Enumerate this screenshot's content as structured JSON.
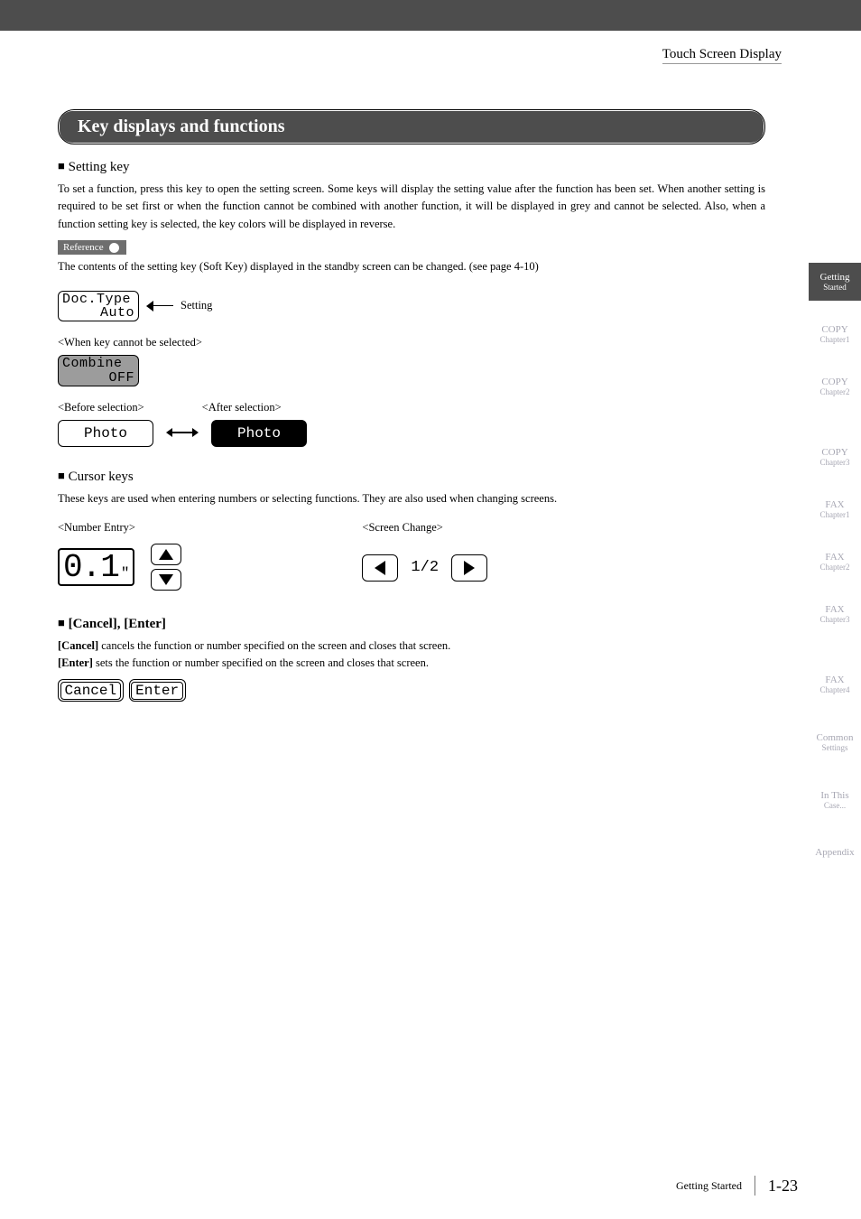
{
  "header": {
    "running_head": "Touch Screen Display"
  },
  "title": "Key displays and functions",
  "setting_key": {
    "heading": "Setting key",
    "body": "To set a function, press this key to open the setting screen. Some keys will display the setting value after the function has been set. When another setting is required to be set first or when the function cannot be combined with another function, it will be displayed in grey and cannot be selected. Also, when a function setting key is selected, the key colors will be displayed in reverse.",
    "reference_label": "Reference",
    "reference_text": "The contents of the setting key (Soft Key) displayed in the standby screen can be changed. (see page 4-10)",
    "doctype_key": {
      "line1": "Doc.Type",
      "line2": "Auto"
    },
    "arrow_caption": "Setting",
    "cannot_select_label": "<When key cannot be selected>",
    "combine_key": {
      "line1": "Combine",
      "line2": "OFF"
    },
    "before_label": "<Before selection>",
    "after_label": "<After selection>",
    "photo_label": "Photo"
  },
  "cursor_keys": {
    "heading": "Cursor keys",
    "body": "These keys are used when entering numbers or selecting functions. They are also used when changing screens.",
    "number_entry_label": "<Number Entry>",
    "number_value": "0.1",
    "number_unit": "\"",
    "screen_change_label": "<Screen Change>",
    "page_indicator": "1/2"
  },
  "cancel_enter": {
    "heading": "[Cancel], [Enter]",
    "cancel_line_prefix": "[Cancel]",
    "cancel_line_rest": " cancels the function or number specified on the screen and closes that screen.",
    "enter_line_prefix": "[Enter]",
    "enter_line_rest": " sets the function or number specified on the screen and closes that screen.",
    "cancel_btn": "Cancel",
    "enter_btn": "Enter"
  },
  "sidebar": {
    "tabs": [
      {
        "t1": "Getting",
        "t2": "Started",
        "active": true
      },
      {
        "t1": "COPY",
        "t2": "Chapter1"
      },
      {
        "t1": "COPY",
        "t2": "Chapter2"
      },
      {
        "t1": "COPY",
        "t2": "Chapter3"
      },
      {
        "t1": "FAX",
        "t2": "Chapter1"
      },
      {
        "t1": "FAX",
        "t2": "Chapter2"
      },
      {
        "t1": "FAX",
        "t2": "Chapter3"
      },
      {
        "t1": "FAX",
        "t2": "Chapter4"
      },
      {
        "t1": "Common",
        "t2": "Settings"
      },
      {
        "t1": "In This",
        "t2": "Case..."
      },
      {
        "t1": "Appendix",
        "t2": ""
      }
    ]
  },
  "footer": {
    "section": "Getting Started",
    "page": "1-23"
  },
  "colors": {
    "bar": "#4d4d4d",
    "disabled_fill": "#9c9c9c",
    "sidebar_inactive_text": "#a8a8b4"
  }
}
